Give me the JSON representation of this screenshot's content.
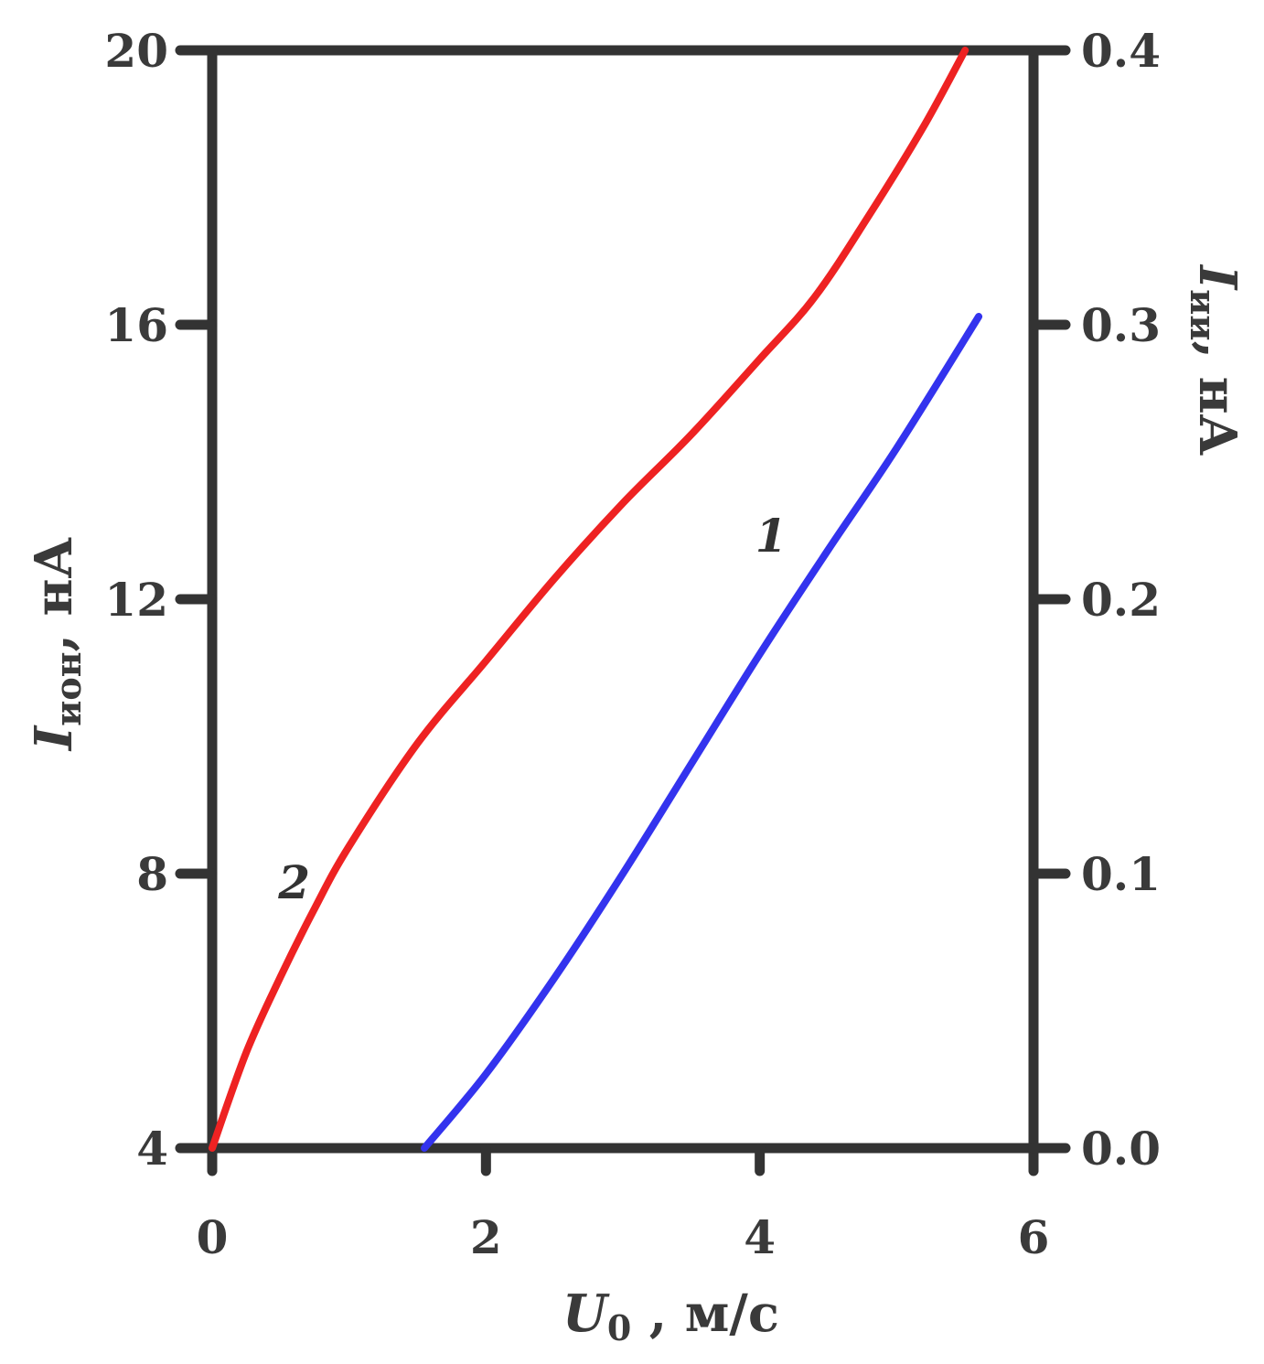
{
  "chart_data": {
    "type": "line",
    "x_axis": {
      "label_main": "U",
      "label_sub": "0",
      "label_rest": " , м/с",
      "range": [
        0,
        6
      ],
      "ticks": [
        "0",
        "2",
        "4",
        "6"
      ]
    },
    "y_axis_left": {
      "label_main": "I",
      "label_sub": "ион",
      "label_rest": ", нА",
      "range": [
        4,
        20
      ],
      "ticks": [
        "4",
        "8",
        "12",
        "16",
        "20"
      ]
    },
    "y_axis_right": {
      "label_main": "I",
      "label_sub": "ии",
      "label_rest": ", нА",
      "range": [
        0.0,
        0.4
      ],
      "ticks": [
        "0.0",
        "0.1",
        "0.2",
        "0.3",
        "0.4"
      ]
    },
    "series": [
      {
        "name": "1",
        "axis": "right",
        "color": "#3333ee",
        "x": [
          1.55,
          2.0,
          2.5,
          3.0,
          3.5,
          4.0,
          4.5,
          5.0,
          5.6
        ],
        "y": [
          0.0,
          0.027,
          0.062,
          0.1,
          0.14,
          0.18,
          0.218,
          0.255,
          0.303
        ]
      },
      {
        "name": "2",
        "axis": "left",
        "color": "#ee2222",
        "x": [
          0.0,
          0.25,
          0.5,
          0.75,
          1.0,
          1.5,
          2.0,
          2.5,
          3.0,
          3.5,
          4.0,
          4.4,
          4.8,
          5.2,
          5.5
        ],
        "y": [
          4.0,
          5.4,
          6.5,
          7.5,
          8.4,
          9.9,
          11.1,
          12.3,
          13.4,
          14.4,
          15.5,
          16.4,
          17.6,
          18.9,
          20.0
        ]
      }
    ],
    "grid": false
  }
}
